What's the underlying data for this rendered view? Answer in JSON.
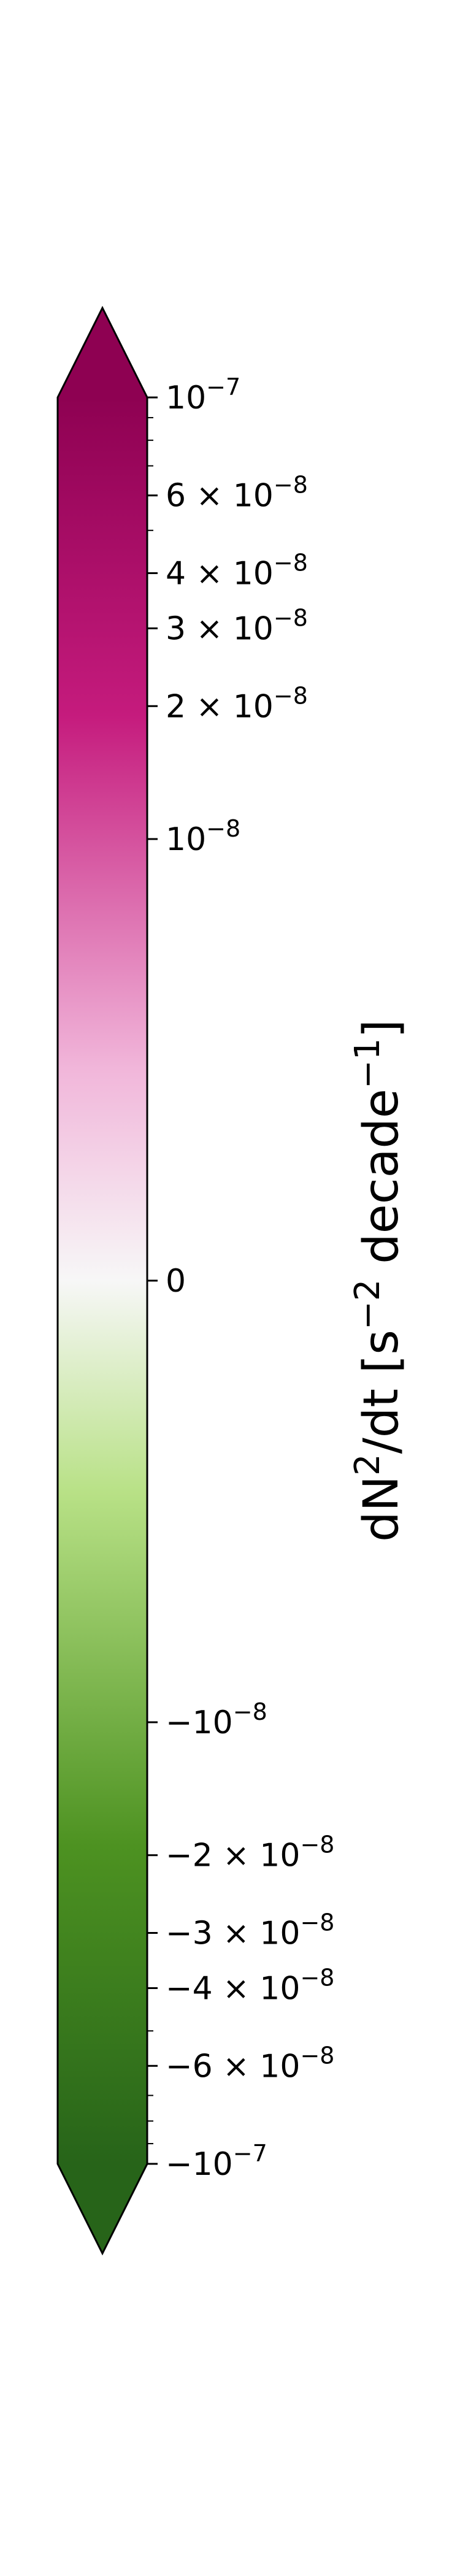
{
  "chart_data": {
    "type": "colorbar",
    "orientation": "vertical",
    "label": "dN²/dt [s⁻² decade⁻¹]",
    "colormap": "PiYG",
    "norm": "symlog",
    "range": [
      -1e-07,
      1e-07
    ],
    "extend": "both",
    "colors": {
      "max_end": "#8e0152",
      "positive_mid": "#c51b7d",
      "positive_light": "#f1b6da",
      "center": "#f7f7f7",
      "negative_light": "#b8e186",
      "negative_mid": "#4d9221",
      "min_end": "#276419"
    },
    "major_ticks": [
      {
        "value": 1e-07,
        "label": "10",
        "exp": "−7"
      },
      {
        "value": 6e-08,
        "label": "6 × 10",
        "exp": "−8"
      },
      {
        "value": 4e-08,
        "label": "4 × 10",
        "exp": "−8"
      },
      {
        "value": 3e-08,
        "label": "3 × 10",
        "exp": "−8"
      },
      {
        "value": 2e-08,
        "label": "2 × 10",
        "exp": "−8"
      },
      {
        "value": 1e-08,
        "label": "10",
        "exp": "−8"
      },
      {
        "value": 0,
        "label": "0",
        "exp": ""
      },
      {
        "value": -1e-08,
        "label": "−10",
        "exp": "−8"
      },
      {
        "value": -2e-08,
        "label": "−2 × 10",
        "exp": "−8"
      },
      {
        "value": -3e-08,
        "label": "−3 × 10",
        "exp": "−8"
      },
      {
        "value": -4e-08,
        "label": "−4 × 10",
        "exp": "−8"
      },
      {
        "value": -6e-08,
        "label": "−6 × 10",
        "exp": "−8"
      },
      {
        "value": -1e-07,
        "label": "−10",
        "exp": "−7"
      }
    ],
    "minor_ticks": [
      9e-08,
      8e-08,
      7e-08,
      5e-08,
      -5e-08,
      -7e-08,
      -8e-08,
      -9e-08
    ]
  }
}
